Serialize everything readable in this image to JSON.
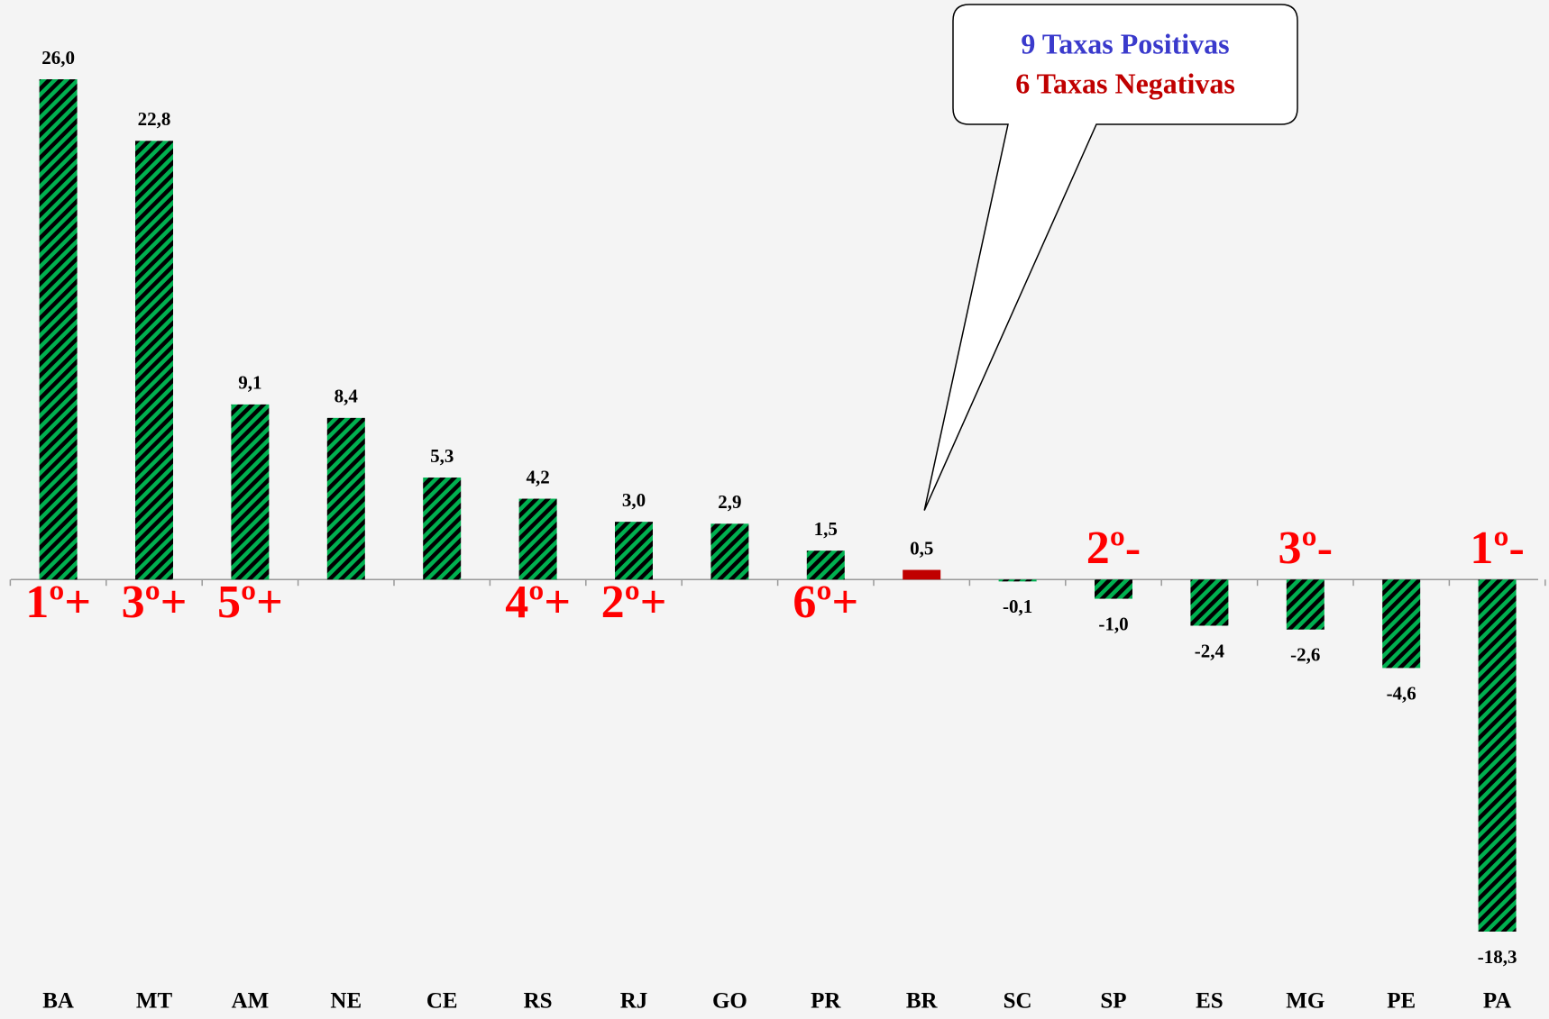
{
  "chart_data": {
    "type": "bar",
    "categories": [
      "BA",
      "MT",
      "AM",
      "NE",
      "CE",
      "RS",
      "RJ",
      "GO",
      "PR",
      "BR",
      "SC",
      "SP",
      "ES",
      "MG",
      "PE",
      "PA"
    ],
    "values": [
      26.0,
      22.8,
      9.1,
      8.4,
      5.3,
      4.2,
      3.0,
      2.9,
      1.5,
      0.5,
      -0.1,
      -1.0,
      -2.4,
      -2.6,
      -4.6,
      -18.3
    ],
    "value_labels": [
      "26,0",
      "22,8",
      "9,1",
      "8,4",
      "5,3",
      "4,2",
      "3,0",
      "2,9",
      "1,5",
      "0,5",
      "-0,1",
      "-1,0",
      "-2,4",
      "-2,6",
      "-4,6",
      "-18,3"
    ],
    "color": "#00b050",
    "pattern": "diagonal-hatch",
    "highlight": {
      "category": "BR",
      "color": "#c00000"
    },
    "annotations": [
      {
        "text": "1º+",
        "category": "BA"
      },
      {
        "text": "3º+",
        "category": "MT"
      },
      {
        "text": "5º+",
        "category": "AM"
      },
      {
        "text": "4º+",
        "category": "RS"
      },
      {
        "text": "2º+",
        "category": "RJ"
      },
      {
        "text": "6º+",
        "category": "PR"
      },
      {
        "text": "2º-",
        "category": "SP"
      },
      {
        "text": "3º-",
        "category": "MG"
      },
      {
        "text": "1º-",
        "category": "PA"
      }
    ],
    "callout": {
      "lines": [
        {
          "text": "9 Taxas Positivas",
          "color": "#3a3acc"
        },
        {
          "text": "6 Taxas Negativas",
          "color": "#c00000"
        }
      ],
      "points_to": "BR"
    }
  }
}
